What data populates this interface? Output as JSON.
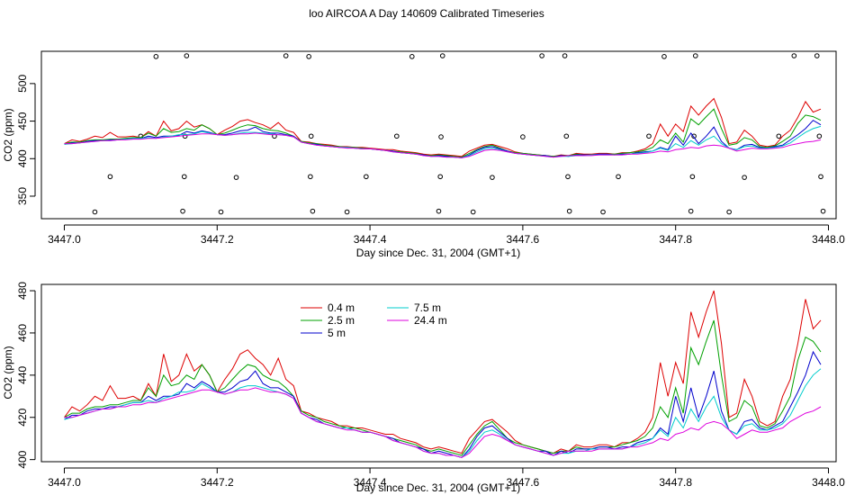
{
  "figure": {
    "title": "loo AIRCOA A  Day 140609  Calibrated Timeseries"
  },
  "chart_data": [
    {
      "type": "line",
      "xlabel": "Day since Dec. 31, 2004 (GMT+1)",
      "ylabel": "CO2 (ppm)",
      "xlim": [
        3446.97,
        3448.01
      ],
      "ylim": [
        320,
        543
      ],
      "xticks": [
        3447.0,
        3447.2,
        3447.4,
        3447.6,
        3447.8,
        3448.0
      ],
      "xtick_labels": [
        "3447.0",
        "3447.2",
        "3447.4",
        "3447.6",
        "3447.8",
        "3448.0"
      ],
      "yticks": [
        350,
        400,
        450,
        500
      ],
      "ytick_labels": [
        "350",
        "400",
        "450",
        "500"
      ],
      "legend": "none",
      "x": [
        3447.0,
        3447.01,
        3447.02,
        3447.03,
        3447.04,
        3447.05,
        3447.06,
        3447.07,
        3447.08,
        3447.09,
        3447.1,
        3447.11,
        3447.12,
        3447.13,
        3447.14,
        3447.15,
        3447.16,
        3447.17,
        3447.18,
        3447.19,
        3447.2,
        3447.21,
        3447.22,
        3447.23,
        3447.24,
        3447.25,
        3447.26,
        3447.27,
        3447.28,
        3447.29,
        3447.3,
        3447.31,
        3447.32,
        3447.33,
        3447.34,
        3447.35,
        3447.36,
        3447.37,
        3447.38,
        3447.39,
        3447.4,
        3447.41,
        3447.42,
        3447.43,
        3447.44,
        3447.45,
        3447.46,
        3447.47,
        3447.48,
        3447.49,
        3447.5,
        3447.51,
        3447.52,
        3447.53,
        3447.54,
        3447.55,
        3447.56,
        3447.57,
        3447.58,
        3447.59,
        3447.6,
        3447.61,
        3447.62,
        3447.63,
        3447.64,
        3447.65,
        3447.66,
        3447.67,
        3447.68,
        3447.69,
        3447.7,
        3447.71,
        3447.72,
        3447.73,
        3447.74,
        3447.75,
        3447.76,
        3447.77,
        3447.78,
        3447.79,
        3447.8,
        3447.81,
        3447.82,
        3447.83,
        3447.84,
        3447.85,
        3447.86,
        3447.87,
        3447.88,
        3447.89,
        3447.9,
        3447.91,
        3447.92,
        3447.93,
        3447.94,
        3447.95,
        3447.96,
        3447.97,
        3447.98,
        3447.99
      ],
      "series": [
        {
          "color": "#dd0000",
          "values": [
            420,
            425,
            423,
            426,
            430,
            428,
            435,
            429,
            429,
            430,
            428,
            436,
            430,
            450,
            437,
            440,
            450,
            442,
            445,
            440,
            432,
            438,
            443,
            450,
            452,
            448,
            445,
            440,
            448,
            438,
            435,
            423,
            422,
            420,
            419,
            418,
            416,
            416,
            415,
            415,
            414,
            413,
            412,
            412,
            410,
            409,
            408,
            406,
            405,
            406,
            405,
            404,
            403,
            410,
            414,
            418,
            419,
            416,
            413,
            409,
            407,
            406,
            405,
            404,
            403,
            405,
            404,
            407,
            406,
            406,
            407,
            407,
            406,
            408,
            408,
            410,
            413,
            420,
            446,
            430,
            446,
            436,
            470,
            458,
            470,
            480,
            455,
            420,
            422,
            438,
            430,
            418,
            416,
            418,
            430,
            438,
            455,
            476,
            462,
            466
          ]
        },
        {
          "color": "#00a000",
          "values": [
            420,
            422,
            422,
            424,
            425,
            425,
            426,
            426,
            427,
            428,
            428,
            434,
            430,
            440,
            435,
            436,
            440,
            438,
            445,
            440,
            432,
            434,
            438,
            442,
            445,
            444,
            440,
            438,
            437,
            434,
            430,
            423,
            421,
            420,
            418,
            417,
            416,
            415,
            415,
            414,
            413,
            412,
            411,
            410,
            409,
            408,
            407,
            405,
            404,
            405,
            404,
            403,
            402,
            407,
            412,
            416,
            418,
            414,
            410,
            408,
            407,
            406,
            405,
            404,
            403,
            404,
            404,
            406,
            405,
            405,
            406,
            406,
            406,
            407,
            408,
            409,
            411,
            415,
            425,
            420,
            434,
            422,
            453,
            445,
            456,
            466,
            440,
            418,
            420,
            428,
            425,
            416,
            415,
            417,
            423,
            430,
            447,
            458,
            456,
            451
          ]
        },
        {
          "color": "#0000cc",
          "values": [
            419,
            421,
            421,
            423,
            424,
            424,
            425,
            425,
            426,
            427,
            427,
            430,
            428,
            430,
            430,
            431,
            436,
            434,
            437,
            435,
            432,
            432,
            434,
            437,
            438,
            442,
            436,
            434,
            434,
            432,
            430,
            422,
            420,
            419,
            417,
            416,
            415,
            415,
            414,
            413,
            413,
            412,
            411,
            410,
            408,
            407,
            406,
            405,
            403,
            404,
            403,
            402,
            401,
            405,
            411,
            415,
            416,
            413,
            410,
            407,
            406,
            405,
            404,
            404,
            402,
            404,
            403,
            405,
            405,
            405,
            406,
            406,
            405,
            406,
            406,
            408,
            409,
            410,
            415,
            412,
            430,
            418,
            434,
            420,
            430,
            442,
            423,
            414,
            412,
            418,
            419,
            415,
            414,
            416,
            418,
            425,
            432,
            440,
            451,
            445
          ]
        },
        {
          "color": "#00cccc",
          "values": [
            419,
            420,
            421,
            422,
            423,
            424,
            424,
            425,
            426,
            427,
            427,
            428,
            427,
            429,
            430,
            432,
            432,
            433,
            436,
            434,
            432,
            431,
            432,
            434,
            435,
            435,
            434,
            433,
            432,
            431,
            429,
            422,
            420,
            418,
            417,
            416,
            415,
            415,
            414,
            413,
            413,
            412,
            411,
            409,
            408,
            407,
            406,
            404,
            403,
            403,
            402,
            402,
            401,
            404,
            409,
            413,
            414,
            412,
            409,
            407,
            406,
            405,
            404,
            403,
            402,
            403,
            403,
            404,
            404,
            405,
            405,
            405,
            405,
            405,
            406,
            407,
            408,
            410,
            414,
            411,
            420,
            415,
            424,
            418,
            425,
            430,
            420,
            414,
            412,
            416,
            417,
            414,
            414,
            415,
            417,
            421,
            428,
            435,
            440,
            443
          ]
        },
        {
          "color": "#dd00dd",
          "values": [
            420,
            420,
            421,
            422,
            423,
            424,
            424,
            425,
            425,
            426,
            426,
            427,
            427,
            428,
            429,
            430,
            431,
            432,
            433,
            433,
            432,
            431,
            432,
            433,
            433,
            434,
            433,
            432,
            432,
            431,
            429,
            422,
            420,
            418,
            417,
            416,
            415,
            414,
            414,
            413,
            413,
            412,
            411,
            409,
            408,
            407,
            406,
            404,
            403,
            403,
            402,
            402,
            401,
            403,
            407,
            411,
            412,
            411,
            409,
            407,
            406,
            405,
            404,
            403,
            402,
            403,
            404,
            404,
            404,
            404,
            405,
            405,
            405,
            405,
            406,
            406,
            407,
            408,
            410,
            409,
            412,
            413,
            415,
            414,
            417,
            418,
            417,
            414,
            410,
            412,
            414,
            413,
            413,
            414,
            415,
            418,
            420,
            422,
            423,
            425
          ]
        }
      ],
      "scatter_points": [
        {
          "x": 3447.04,
          "y": 329
        },
        {
          "x": 3447.06,
          "y": 376
        },
        {
          "x": 3447.1,
          "y": 430
        },
        {
          "x": 3447.12,
          "y": 536
        },
        {
          "x": 3447.155,
          "y": 330
        },
        {
          "x": 3447.157,
          "y": 376
        },
        {
          "x": 3447.158,
          "y": 430
        },
        {
          "x": 3447.16,
          "y": 537
        },
        {
          "x": 3447.205,
          "y": 329
        },
        {
          "x": 3447.225,
          "y": 375
        },
        {
          "x": 3447.275,
          "y": 430
        },
        {
          "x": 3447.29,
          "y": 537
        },
        {
          "x": 3447.32,
          "y": 536
        },
        {
          "x": 3447.322,
          "y": 376
        },
        {
          "x": 3447.323,
          "y": 430
        },
        {
          "x": 3447.325,
          "y": 330
        },
        {
          "x": 3447.37,
          "y": 329
        },
        {
          "x": 3447.395,
          "y": 376
        },
        {
          "x": 3447.435,
          "y": 430
        },
        {
          "x": 3447.455,
          "y": 536
        },
        {
          "x": 3447.49,
          "y": 330
        },
        {
          "x": 3447.492,
          "y": 376
        },
        {
          "x": 3447.493,
          "y": 429
        },
        {
          "x": 3447.495,
          "y": 537
        },
        {
          "x": 3447.535,
          "y": 329
        },
        {
          "x": 3447.56,
          "y": 375
        },
        {
          "x": 3447.6,
          "y": 429
        },
        {
          "x": 3447.625,
          "y": 537
        },
        {
          "x": 3447.655,
          "y": 537
        },
        {
          "x": 3447.657,
          "y": 430
        },
        {
          "x": 3447.659,
          "y": 376
        },
        {
          "x": 3447.661,
          "y": 330
        },
        {
          "x": 3447.705,
          "y": 329
        },
        {
          "x": 3447.725,
          "y": 376
        },
        {
          "x": 3447.765,
          "y": 430
        },
        {
          "x": 3447.785,
          "y": 536
        },
        {
          "x": 3447.82,
          "y": 330
        },
        {
          "x": 3447.822,
          "y": 376
        },
        {
          "x": 3447.824,
          "y": 430
        },
        {
          "x": 3447.826,
          "y": 537
        },
        {
          "x": 3447.87,
          "y": 329
        },
        {
          "x": 3447.89,
          "y": 375
        },
        {
          "x": 3447.935,
          "y": 430
        },
        {
          "x": 3447.955,
          "y": 537
        },
        {
          "x": 3447.985,
          "y": 537
        },
        {
          "x": 3447.988,
          "y": 430
        },
        {
          "x": 3447.99,
          "y": 376
        },
        {
          "x": 3447.993,
          "y": 330
        }
      ]
    },
    {
      "type": "line",
      "xlabel": "Day since Dec. 31, 2004 (GMT+1)",
      "ylabel": "CO2 (ppm)",
      "xlim": [
        3446.97,
        3448.01
      ],
      "ylim": [
        399,
        483
      ],
      "xticks": [
        3447.0,
        3447.2,
        3447.4,
        3447.6,
        3447.8,
        3448.0
      ],
      "xtick_labels": [
        "3447.0",
        "3447.2",
        "3447.4",
        "3447.6",
        "3447.8",
        "3448.0"
      ],
      "yticks": [
        400,
        420,
        440,
        460,
        480
      ],
      "ytick_labels": [
        "400",
        "420",
        "440",
        "460",
        "480"
      ],
      "legend": "top-left",
      "legend_entries": [
        {
          "name": "0.4 m",
          "color": "#dd0000"
        },
        {
          "name": "2.5 m",
          "color": "#00a000"
        },
        {
          "name": "5 m",
          "color": "#0000cc"
        },
        {
          "name": "7.5 m",
          "color": "#00cccc"
        },
        {
          "name": "24.4 m",
          "color": "#dd00dd"
        }
      ],
      "series_ref": 0
    }
  ]
}
